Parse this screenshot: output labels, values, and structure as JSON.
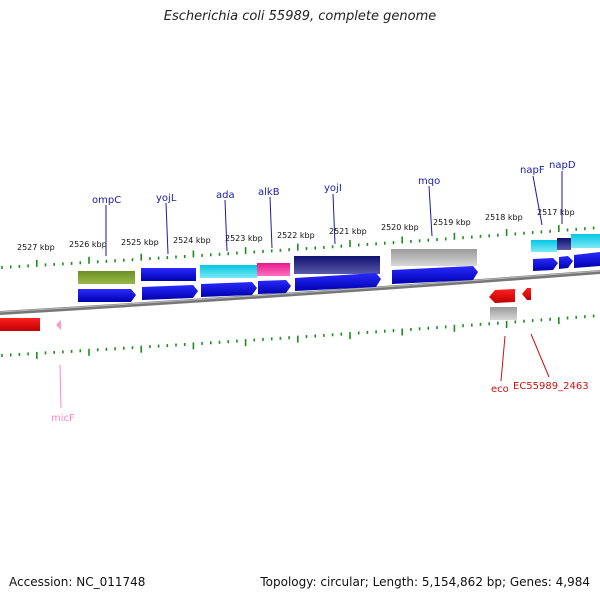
{
  "title": "Escherichia coli 55989, complete genome",
  "footer": {
    "accession": "Accession: NC_011748",
    "summary": "Topology: circular; Length: 5,154,862 bp; Genes: 4,984"
  },
  "scale_labels": [
    "2527 kbp",
    "2526 kbp",
    "2525 kbp",
    "2524 kbp",
    "2523 kbp",
    "2522 kbp",
    "2521 kbp",
    "2520 kbp",
    "2519 kbp",
    "2518 kbp",
    "2517 kbp"
  ],
  "genes": {
    "ompC": "ompC",
    "yojL": "yojL",
    "ada": "ada",
    "alkB": "alkB",
    "yojI": "yojI",
    "mqo": "mqo",
    "napF": "napF",
    "napD": "napD",
    "eco": "eco",
    "ec55989_2463": "EC55989_2463",
    "micF": "micF"
  },
  "colors": {
    "cds": "#0a0ae0",
    "gene": "#1a1aff",
    "olive": "#6b8e23",
    "cyan": "#00c8e6",
    "magenta": "#e6198c",
    "navy": "#141478",
    "grey": "#b4b4b4",
    "red": "#ff1414",
    "pink": "#ff99cc",
    "tick": "#1e8c1e",
    "backbone": "#888888"
  }
}
